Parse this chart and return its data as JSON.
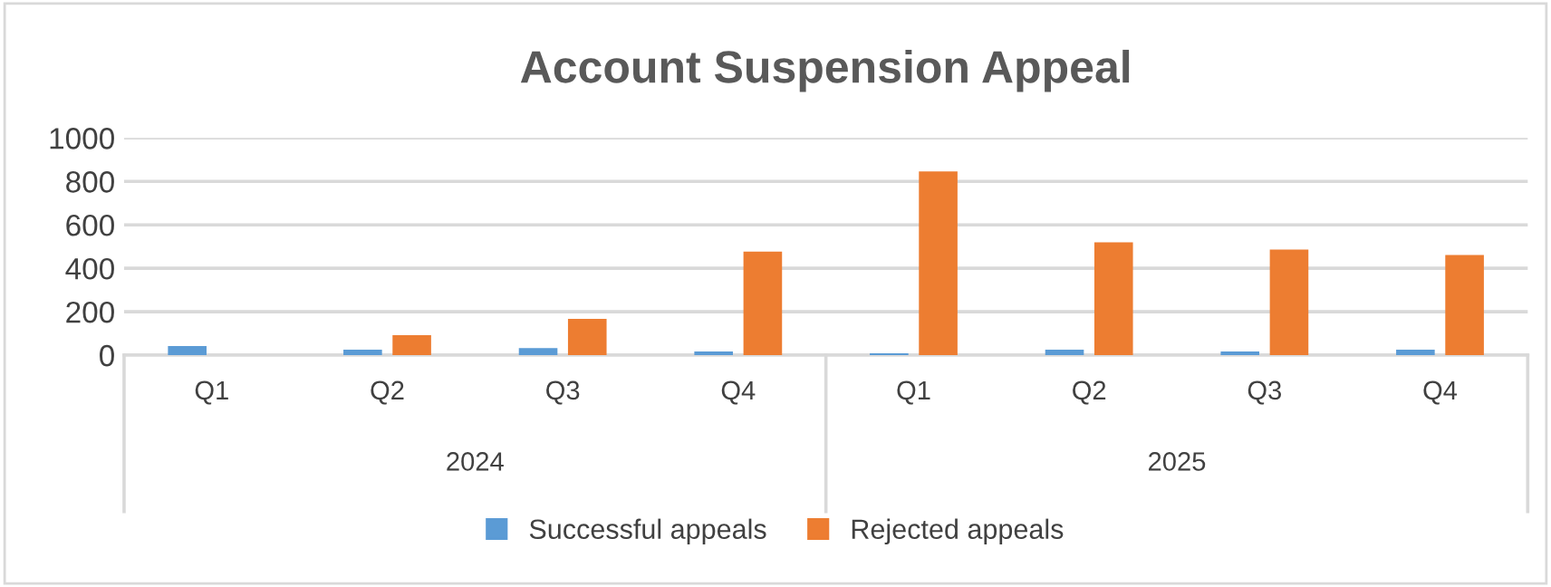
{
  "chart_data": {
    "type": "bar",
    "title": "Account Suspension Appeal",
    "categories": [
      "Q1",
      "Q2",
      "Q3",
      "Q4",
      "Q1",
      "Q2",
      "Q3",
      "Q4"
    ],
    "series": [
      {
        "name": "Successful appeals",
        "color": "#5b9bd5",
        "values": [
          42,
          25,
          33,
          17,
          8,
          25,
          17,
          25
        ]
      },
      {
        "name": "Rejected appeals",
        "color": "#ed7d31",
        "values": [
          0,
          92,
          167,
          477,
          846,
          519,
          486,
          461
        ]
      }
    ],
    "annotations": [
      "2024",
      "2025"
    ],
    "ylim": [
      0,
      1000
    ],
    "yticks": [
      0,
      200,
      400,
      600,
      800,
      1000
    ],
    "grid": "y",
    "legend": "bottom"
  }
}
